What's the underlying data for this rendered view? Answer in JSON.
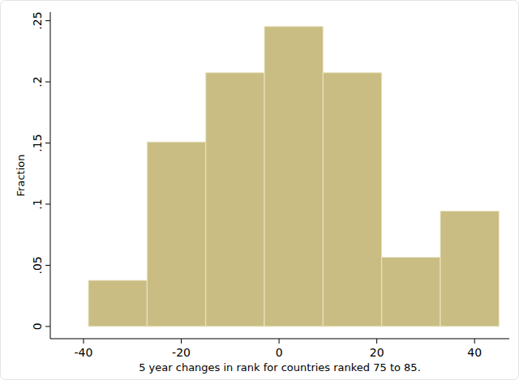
{
  "chart_data": {
    "type": "histogram",
    "x_label": "5 year changes in rank for countries ranked 75 to 85.",
    "y_label": "Fraction",
    "bins": [
      -39,
      -27,
      -15,
      -3,
      9,
      21,
      33,
      45
    ],
    "values": [
      0.0377,
      0.1509,
      0.2075,
      0.2453,
      0.2075,
      0.0566,
      0.0943
    ],
    "color": "#c9bd83",
    "xlim": [
      -46.8,
      47.1
    ],
    "ylim": [
      -0.01,
      0.257
    ],
    "xticks": [
      -40,
      -20,
      0,
      20,
      40
    ],
    "yticks": [
      0,
      {
        "value": 0.05,
        "label": ".05"
      },
      {
        "value": 0.1,
        "label": ".1"
      },
      {
        "value": 0.15,
        "label": ".15"
      },
      {
        "value": 0.2,
        "label": ".2"
      },
      {
        "value": 0.25,
        "label": ".25"
      }
    ]
  }
}
